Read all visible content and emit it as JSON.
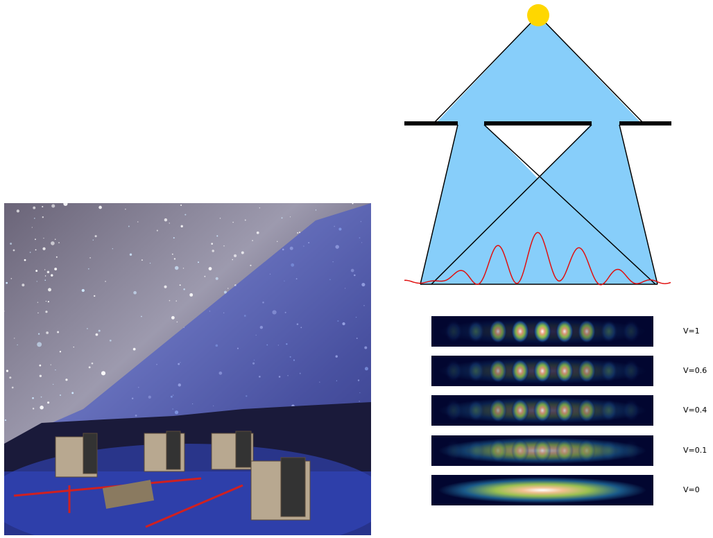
{
  "fringes": [
    {
      "label": "V=1"
    },
    {
      "label": "V=0.6"
    },
    {
      "label": "V=0.4"
    },
    {
      "label": "V=0.1"
    },
    {
      "label": "V=0"
    }
  ]
}
